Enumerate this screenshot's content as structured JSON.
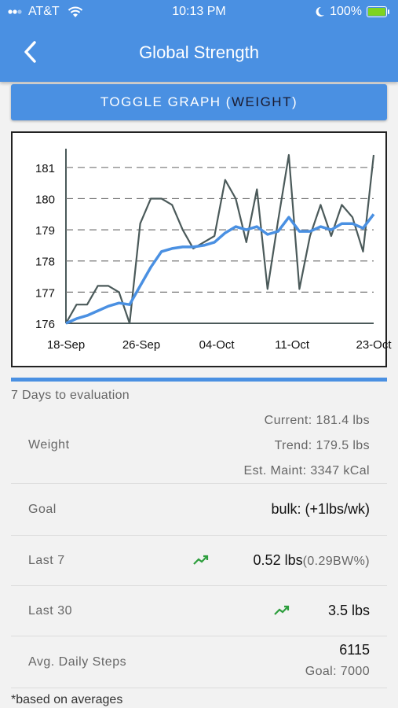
{
  "status": {
    "carrier": "AT&T",
    "time": "10:13 PM",
    "battery": "100%"
  },
  "header": {
    "title": "Global Strength"
  },
  "toggle": {
    "prefix": "TOGGLE GRAPH (",
    "mode": "WEIGHT",
    "suffix": ")"
  },
  "chart_data": {
    "type": "line",
    "x_ticks": [
      "18-Sep",
      "26-Sep",
      "04-Oct",
      "11-Oct",
      "23-Oct"
    ],
    "y_ticks": [
      176,
      177,
      178,
      179,
      180,
      181
    ],
    "ylim": [
      176,
      181.5
    ],
    "grid": true,
    "series": [
      {
        "role": "daily",
        "color": "#4b5a5a",
        "values": [
          176.0,
          176.6,
          176.6,
          177.2,
          177.2,
          177.0,
          176.0,
          179.2,
          180.0,
          180.0,
          179.8,
          179.0,
          178.4,
          178.6,
          178.8,
          180.6,
          180.0,
          178.6,
          180.3,
          177.1,
          179.3,
          181.4,
          177.1,
          178.8,
          179.8,
          178.8,
          179.8,
          179.4,
          178.3,
          181.4
        ]
      },
      {
        "role": "trend",
        "color": "#4a90e2",
        "values": [
          176.0,
          176.15,
          176.25,
          176.4,
          176.55,
          176.65,
          176.6,
          177.2,
          177.8,
          178.3,
          178.4,
          178.45,
          178.45,
          178.5,
          178.6,
          178.9,
          179.1,
          179.0,
          179.1,
          178.85,
          178.95,
          179.4,
          178.95,
          178.95,
          179.1,
          179.0,
          179.2,
          179.2,
          179.05,
          179.5
        ]
      }
    ]
  },
  "evaluation": "7 Days to evaluation",
  "weight": {
    "label": "Weight",
    "current": "Current: 181.4 lbs",
    "trend": "Trend: 179.5 lbs",
    "maint": "Est. Maint: 3347 kCal"
  },
  "goal": {
    "label": "Goal",
    "value": "bulk: (+1lbs/wk)"
  },
  "last7": {
    "label": "Last 7",
    "value": "0.52 lbs",
    "pct": "(0.29BW%)",
    "icon": "trending-up-icon",
    "icon_color": "#2e9e3e"
  },
  "last30": {
    "label": "Last 30",
    "value": "3.5 lbs",
    "icon": "trending-up-icon",
    "icon_color": "#2e9e3e"
  },
  "steps": {
    "label": "Avg. Daily Steps",
    "value": "6115",
    "goal": "Goal: 7000"
  },
  "footnote": "*based on averages"
}
